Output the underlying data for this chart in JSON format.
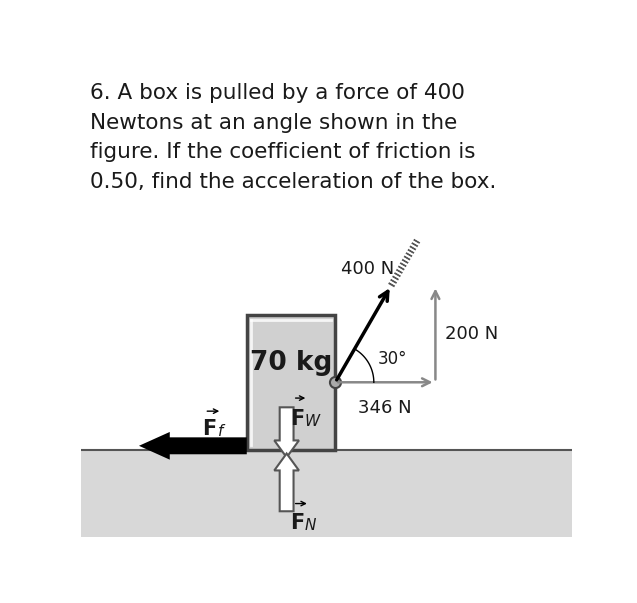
{
  "background_color": "#ffffff",
  "ground_color": "#d8d8d8",
  "box_face_color": "#d0d0d0",
  "box_edge_color": "#444444",
  "text_color": "#1a1a1a",
  "problem_text": "6. A box is pulled by a force of 400\nNewtons at an angle shown in the\nfigure. If the coefficient of friction is\n0.50, find the acceleration of the box.",
  "box_label": "70 kg",
  "force_400": "400 N",
  "force_200": "200 N",
  "force_346": "346 N",
  "angle_label": "30°",
  "label_Fw": "$\\vec{F}$",
  "label_Fw_sub": "$_W$",
  "label_Ff": "$\\vec{F}$",
  "label_Ff_sub": "$_f$",
  "label_FN": "$\\vec{F}$",
  "label_FN_sub": "$_N$",
  "font_size_problem": 15.5,
  "font_size_labels": 13,
  "font_size_box_label": 19
}
